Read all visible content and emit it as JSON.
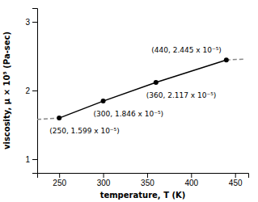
{
  "chart_data": {
    "type": "line",
    "xlabel": "temperature, T (K)",
    "ylabel": "viscosity, μ × 10⁵ (Pa-sec)",
    "series": [
      {
        "x": [
          225,
          250
        ],
        "values": [
          1.58,
          1.599
        ],
        "color": "#888888",
        "line_style": "dashed"
      },
      {
        "x": [
          440,
          462
        ],
        "values": [
          2.445,
          2.458
        ],
        "color": "#888888",
        "line_style": "dashed"
      },
      {
        "x": [
          250,
          300,
          360,
          440
        ],
        "values": [
          1.599,
          1.846,
          2.117,
          2.445
        ],
        "color": "#000000",
        "line_style": "solid",
        "marker": "circle"
      }
    ],
    "annotations": [
      {
        "text": "(250, 1.599 x 10⁻⁵)",
        "x": 250,
        "y": 1.599
      },
      {
        "text": "(300, 1.846 x 10⁻⁵)",
        "x": 300,
        "y": 1.846
      },
      {
        "text": "(360, 2.117 x 10⁻⁵)",
        "x": 360,
        "y": 2.117
      },
      {
        "text": "(440, 2.445 x 10⁻⁵)",
        "x": 440,
        "y": 2.445
      }
    ],
    "xlim": [
      225,
      465
    ],
    "ylim": [
      0.8,
      3.2
    ],
    "xticks": [
      250,
      300,
      350,
      400,
      450
    ],
    "yticks": [
      1,
      2,
      3
    ]
  }
}
